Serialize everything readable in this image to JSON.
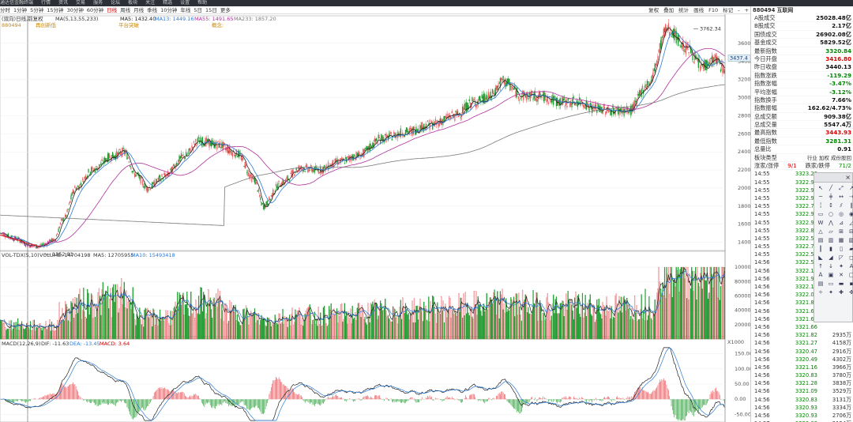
{
  "topbar": {
    "items": [
      "通达信金融终端",
      "行情",
      "资讯",
      "交易",
      "服务",
      "论坛",
      "板块",
      "关注",
      "精选",
      "设置",
      "帮助"
    ]
  },
  "periods": [
    "分时",
    "1分钟",
    "5分钟",
    "15分钟",
    "30分钟",
    "60分钟",
    "日线",
    "周线",
    "月线",
    "季线",
    "10分钟",
    "年线",
    "5日",
    "15日",
    "更多"
  ],
  "selected_period": "日线",
  "tools_right": [
    "复权",
    "叠加",
    "统计",
    "画线",
    "F10",
    "标记",
    "-",
    "+"
  ],
  "chart_header": {
    "left_label": "(双向)日线,前复权",
    "ma_label": "MA(5,13,55,233)",
    "ma5": "MA5: 1432.40",
    "ma13": "MA13: 1449.16",
    "ma55": "MA55: 1491.65",
    "ma233": "MA233: 1857.20",
    "code_small": "880494",
    "note1": "再创新低",
    "note2": "平台突破",
    "note3": "概念:"
  },
  "vol_header": {
    "name": "VOL-TDX(5,10)",
    "volume": "VOLUME: 14704198",
    "ma5": "MA5: 12705955",
    "ma10": "MA10: 15493418"
  },
  "macd_header": {
    "name": "MACD(12,26,9)",
    "dif": "DIF: -11.63",
    "dea": "DEA: -13.45",
    "macd": "MACD: 3.64"
  },
  "annotations": {
    "high": "3762.34",
    "low": "1352.81",
    "last_tag": "3437.4",
    "vol_unit": "X1000"
  },
  "price_axis": [
    "3600",
    "3400",
    "3200",
    "3000",
    "2800",
    "2600",
    "2400",
    "2200",
    "2000",
    "1800",
    "1600",
    "1400"
  ],
  "vol_axis": [
    "100000",
    "80000",
    "60000",
    "40000",
    "20000"
  ],
  "macd_axis": [
    "150.00",
    "100.00",
    "50.00",
    "0.00",
    "-50.00"
  ],
  "right_panel": {
    "title": "880494 互联网",
    "stats": [
      {
        "label": "A股成交",
        "value": "25028.48亿",
        "cls": "blk"
      },
      {
        "label": "B股成交",
        "value": "2.17亿",
        "cls": "blk"
      },
      {
        "label": "国债成交",
        "value": "26902.08亿",
        "cls": "blk"
      },
      {
        "label": "基金成交",
        "value": "5829.52亿",
        "cls": "blk"
      },
      {
        "label": "最新指数",
        "value": "3320.84",
        "cls": "green"
      },
      {
        "label": "今日开盘",
        "value": "3416.80",
        "cls": "red"
      },
      {
        "label": "昨日收盘",
        "value": "3440.13",
        "cls": "blk"
      },
      {
        "label": "指数涨跌",
        "value": "-119.29",
        "cls": "green"
      },
      {
        "label": "指数涨幅",
        "value": "-3.47%",
        "cls": "green"
      },
      {
        "label": "平均涨幅",
        "value": "-3.12%",
        "cls": "green"
      },
      {
        "label": "指数换手",
        "value": "7.66%",
        "cls": "blk"
      },
      {
        "label": "指数振幅",
        "value": "162.62/4.73%",
        "cls": "blk"
      },
      {
        "label": "总成交额",
        "value": "909.38亿",
        "cls": "blk"
      },
      {
        "label": "总成交量",
        "value": "5547.4万",
        "cls": "blk"
      },
      {
        "label": "最高指数",
        "value": "3443.93",
        "cls": "red"
      },
      {
        "label": "最低指数",
        "value": "3281.31",
        "cls": "green"
      },
      {
        "label": "总量比",
        "value": "0.91",
        "cls": "blk"
      }
    ],
    "sector_row": {
      "label": "板块类型",
      "value": "行业 加权 成份股回"
    },
    "updown_row": {
      "label": "涨家/涨停",
      "v1": "9/1",
      "label2": "跌家/跌停",
      "v2": "71/2"
    },
    "ticks": [
      {
        "t": "14:55",
        "p": "3323.28",
        "v": ""
      },
      {
        "t": "14:55",
        "p": "3322.94",
        "v": ""
      },
      {
        "t": "14:55",
        "p": "3322.97",
        "v": ""
      },
      {
        "t": "14:55",
        "p": "3322.98",
        "v": ""
      },
      {
        "t": "14:55",
        "p": "3322.79",
        "v": ""
      },
      {
        "t": "14:55",
        "p": "3322.97",
        "v": ""
      },
      {
        "t": "14:55",
        "p": "3322.99",
        "v": ""
      },
      {
        "t": "14:55",
        "p": "3322.87",
        "v": ""
      },
      {
        "t": "14:55",
        "p": "3322.54",
        "v": ""
      },
      {
        "t": "14:55",
        "p": "3322.73",
        "v": ""
      },
      {
        "t": "14:55",
        "p": "3322.59",
        "v": ""
      },
      {
        "t": "14:56",
        "p": "3322.50",
        "v": ""
      },
      {
        "t": "14:56",
        "p": "3322.14",
        "v": ""
      },
      {
        "t": "14:56",
        "p": "3321.90",
        "v": ""
      },
      {
        "t": "14:56",
        "p": "3322.19",
        "v": ""
      },
      {
        "t": "14:56",
        "p": "3322.04",
        "v": ""
      },
      {
        "t": "14:56",
        "p": "3321.83",
        "v": ""
      },
      {
        "t": "14:56",
        "p": "3321.66",
        "v": ""
      },
      {
        "t": "14:56",
        "p": "3321.61",
        "v": ""
      },
      {
        "t": "14:56",
        "p": "3321.66",
        "v": ""
      },
      {
        "t": "14:56",
        "p": "3321.82",
        "v": "2935万"
      },
      {
        "t": "14:56",
        "p": "3321.27",
        "v": "4158万"
      },
      {
        "t": "14:56",
        "p": "3320.47",
        "v": "2916万"
      },
      {
        "t": "14:56",
        "p": "3320.49",
        "v": "4302万"
      },
      {
        "t": "14:56",
        "p": "3321.16",
        "v": "3966万"
      },
      {
        "t": "14:56",
        "p": "3320.83",
        "v": "3780万"
      },
      {
        "t": "14:56",
        "p": "3321.28",
        "v": "3838万"
      },
      {
        "t": "14:56",
        "p": "3321.09",
        "v": "3529万"
      },
      {
        "t": "14:56",
        "p": "3320.83",
        "v": "3131万"
      },
      {
        "t": "14:56",
        "p": "3320.93",
        "v": "3334万"
      },
      {
        "t": "14:56",
        "p": "3320.93",
        "v": "2706万"
      },
      {
        "t": "14:57",
        "p": "3320.83",
        "v": "2154万"
      },
      {
        "t": "14:57",
        "p": "3320.83",
        "v": "17.00万"
      }
    ]
  },
  "colors": {
    "up": "#e8474c",
    "down": "#1e9a2e",
    "ma5": "#222222",
    "ma13": "#2b7bd8",
    "ma55": "#b0309c",
    "ma233": "#7a7a7a"
  },
  "chart_data": {
    "type": "candlestick",
    "price_range": [
      1300,
      3800
    ],
    "high": 3762.34,
    "low": 1352.81,
    "keypoints": [
      [
        0,
        1500
      ],
      [
        15,
        1440
      ],
      [
        30,
        1370
      ],
      [
        40,
        1352.81
      ],
      [
        55,
        1420
      ],
      [
        65,
        1650
      ],
      [
        78,
        2000
      ],
      [
        95,
        2200
      ],
      [
        115,
        2350
      ],
      [
        128,
        2400
      ],
      [
        140,
        2150
      ],
      [
        152,
        2000
      ],
      [
        170,
        2130
      ],
      [
        190,
        2350
      ],
      [
        205,
        2520
      ],
      [
        225,
        2480
      ],
      [
        245,
        2380
      ],
      [
        262,
        2100
      ],
      [
        272,
        1800
      ],
      [
        290,
        2050
      ],
      [
        310,
        2220
      ],
      [
        330,
        2200
      ],
      [
        350,
        2290
      ],
      [
        370,
        2360
      ],
      [
        395,
        2550
      ],
      [
        420,
        2620
      ],
      [
        445,
        2700
      ],
      [
        470,
        2800
      ],
      [
        490,
        2950
      ],
      [
        505,
        3000
      ],
      [
        520,
        3180
      ],
      [
        540,
        3020
      ],
      [
        560,
        3010
      ],
      [
        580,
        2950
      ],
      [
        600,
        2950
      ],
      [
        615,
        2880
      ],
      [
        632,
        2860
      ],
      [
        650,
        2850
      ],
      [
        670,
        3150
      ],
      [
        690,
        3760
      ],
      [
        710,
        3550
      ],
      [
        725,
        3350
      ],
      [
        740,
        3420
      ],
      [
        748,
        3320
      ]
    ]
  }
}
